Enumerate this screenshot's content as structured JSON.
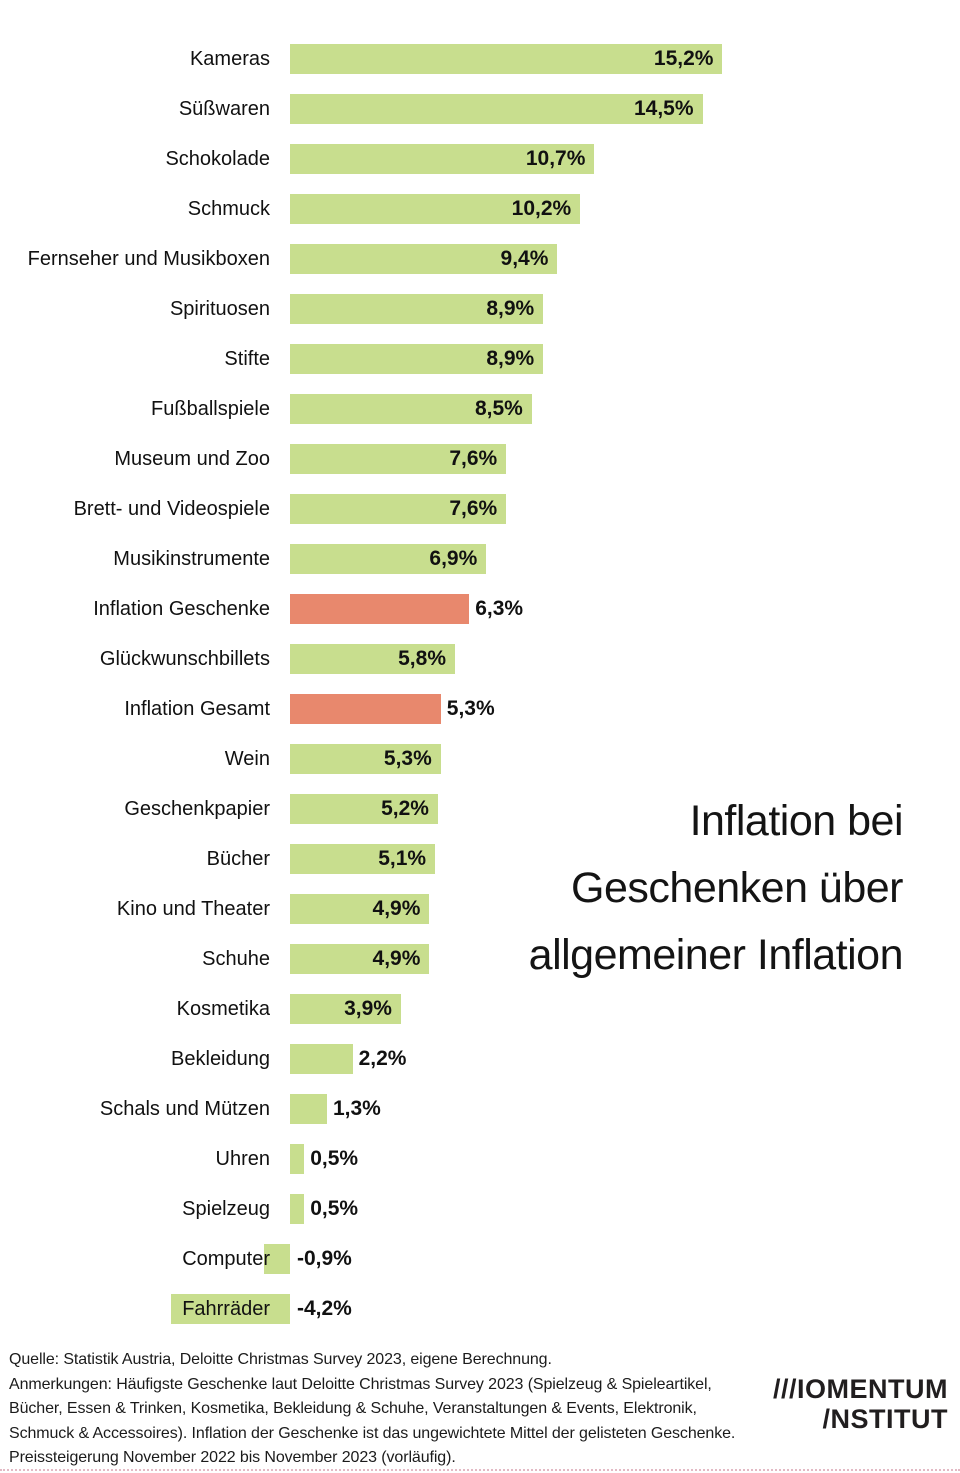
{
  "chart_data": {
    "type": "bar",
    "orientation": "horizontal",
    "title": "Inflation bei Geschenken über allgemeiner Inflation",
    "title_lines": [
      "Inflation bei",
      "Geschenken über",
      "allgemeiner Inflation"
    ],
    "value_unit": "%",
    "decimal_separator": ",",
    "categories": [
      "Kameras",
      "Süßwaren",
      "Schokolade",
      "Schmuck",
      "Fernseher und Musikboxen",
      "Spirituosen",
      "Stifte",
      "Fußballspiele",
      "Museum und Zoo",
      "Brett- und Videospiele",
      "Musikinstrumente",
      "Inflation Geschenke",
      "Glückwunschbillets",
      "Inflation Gesamt",
      "Wein",
      "Geschenkpapier",
      "Bücher",
      "Kino und Theater",
      "Schuhe",
      "Kosmetika",
      "Bekleidung",
      "Schals und Mützen",
      "Uhren",
      "Spielzeug",
      "Computer",
      "Fahrräder"
    ],
    "values": [
      15.2,
      14.5,
      10.7,
      10.2,
      9.4,
      8.9,
      8.9,
      8.5,
      7.6,
      7.6,
      6.9,
      6.3,
      5.8,
      5.3,
      5.3,
      5.2,
      5.1,
      4.9,
      4.9,
      3.9,
      2.2,
      1.3,
      0.5,
      0.5,
      -0.9,
      -4.2
    ],
    "display_values": [
      "15,2%",
      "14,5%",
      "10,7%",
      "10,2%",
      "9,4%",
      "8,9%",
      "8,9%",
      "8,5%",
      "7,6%",
      "7,6%",
      "6,9%",
      "6,3%",
      "5,8%",
      "5,3%",
      "5,3%",
      "5,2%",
      "5,1%",
      "4,9%",
      "4,9%",
      "3,9%",
      "2,2%",
      "1,3%",
      "0,5%",
      "0,5%",
      "-0,9%",
      "-4,2%"
    ],
    "highlight_indices": [
      11,
      13
    ],
    "bar_color": "#C8DE8E",
    "highlight_color": "#E8886D",
    "grid": false,
    "legend": false,
    "value_range": [
      -4.2,
      15.2
    ]
  },
  "footer": {
    "lines": [
      "Quelle: Statistik Austria,  Deloitte Christmas Survey 2023, eigene Berechnung.",
      "Anmerkungen: Häufigste Geschenke laut Deloitte Christmas Survey 2023 (Spielzeug & Spieleartikel,",
      "Bücher, Essen & Trinken, Kosmetika, Bekleidung & Schuhe, Veranstaltungen & Events, Elektronik,",
      "Schmuck & Accessoires).  Inflation der Geschenke ist das ungewichtete Mittel der gelisteten Geschenke.",
      "Preissteigerung November 2022 bis November 2023 (vorläufig)."
    ]
  },
  "logo": {
    "line1": "///IOMENTUM",
    "line2": "/NSTITUT"
  }
}
